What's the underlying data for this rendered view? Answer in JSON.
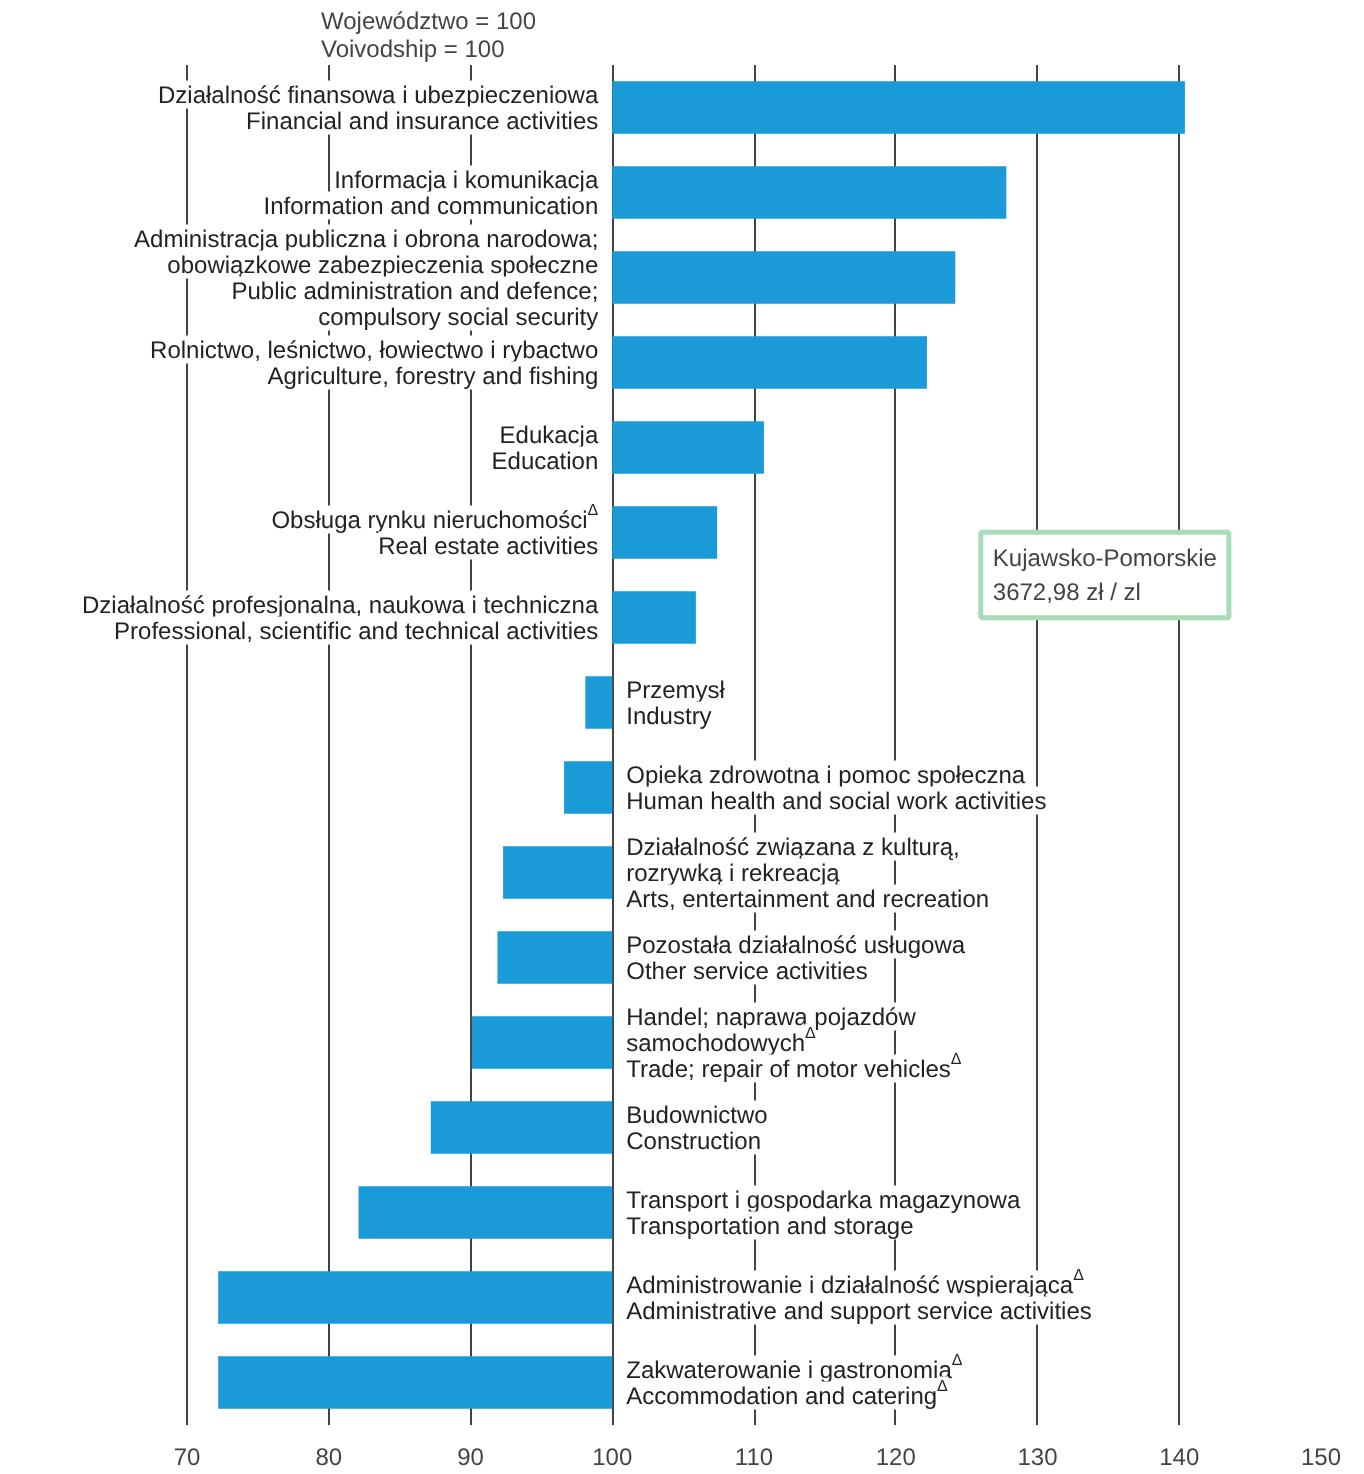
{
  "chart_data": {
    "type": "bar",
    "orientation": "horizontal",
    "title": "Województwo = 100\nVoivodship = 100",
    "categories": [
      "Działalność finansowa i ubezpieczeniowa\nFinancial and insurance activities",
      "Informacja i komunikacja\nInformation and communication",
      "Administracja publiczna i obrona narodowa;\nobowiązkowe zabezpieczenia społeczne\nPublic administration and defence;\ncompulsory social security",
      "Rolnictwo, leśnictwo, łowiectwo i rybactwo\nAgriculture, forestry and fishing",
      "Edukacja\nEducation",
      "Obsługa rynku nieruchomości$^{Δ}$\nReal estate activities",
      "Działalność profesjonalna, naukowa i techniczna\nProfessional, scientific and technical activities",
      "Przemysł\nIndustry",
      "Opieka zdrowotna i pomoc społeczna\nHuman health and social work activities",
      "Działalność związana z kulturą,\nrozrywką i rekreacją\nArts, entertainment and recreation",
      "Pozostała działalność usługowa\nOther service activities",
      "Handel; naprawa pojazdów\nsamochodowych$^{Δ}$\nTrade; repair of motor vehicles$^{Δ}$",
      "Budownictwo\nConstruction",
      "Transport i gospodarka magazynowa\nTransportation and storage",
      "Administrowanie i działalność wspierająca$^{Δ}$\nAdministrative and support service activities",
      "Zakwaterowanie i gastronomia$^{Δ}$\nAccommodation and catering$^{Δ}$"
    ],
    "base": [
      100,
      100,
      100,
      100,
      100,
      100,
      100,
      100,
      100,
      100,
      100,
      100,
      100,
      100,
      100,
      100
    ],
    "values": [
      40.4,
      27.8,
      24.2,
      22.2,
      10.7,
      7.4,
      5.9,
      -1.9,
      -3.4,
      -7.7,
      -8.1,
      -9.9,
      -12.8,
      -17.9,
      -27.8,
      -27.8
    ],
    "color": "#1a9ad6",
    "xlim": [
      70,
      150
    ],
    "xticks": [
      70,
      80,
      90,
      100,
      110,
      120,
      130,
      140,
      150
    ],
    "grid": "x",
    "tick_labels": "x",
    "annotations": [
      "Kujawsko-Pomorskie\n3672,98 zł / zl"
    ]
  }
}
